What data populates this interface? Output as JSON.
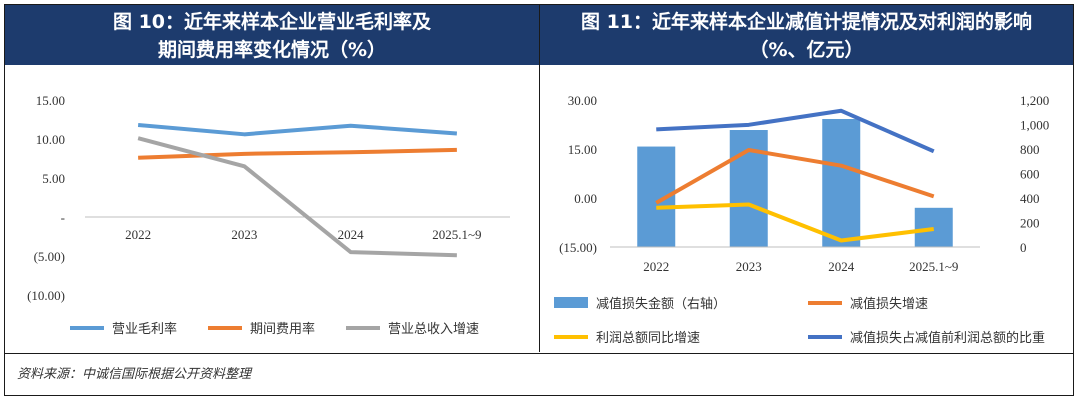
{
  "fig10": {
    "title_line1": "图 10：近年来样本企业营业毛利率及",
    "title_line2": "期间费用率变化情况（%）"
  },
  "fig11": {
    "title_line1": "图 11：近年来样本企业减值计提情况及对利润的影响",
    "title_line2": "（%、亿元）"
  },
  "source": "资料来源：中诚信国际根据公开资料整理",
  "colors": {
    "title_bg": "#1d3b6d",
    "blue": "#5b9bd5",
    "orange": "#ed7d31",
    "gray": "#a5a5a5",
    "yellow": "#ffc000",
    "navy": "#4472c4"
  },
  "chart_data": [
    {
      "type": "line",
      "title": "图 10：近年来样本企业营业毛利率及期间费用率变化情况（%）",
      "categories": [
        "2022",
        "2023",
        "2024",
        "2025.1~9"
      ],
      "y_ticks": [
        "15.00",
        "10.00",
        "5.00",
        "-",
        "(5.00)",
        "(10.00)"
      ],
      "ylim": [
        -10,
        15
      ],
      "series": [
        {
          "name": "营业毛利率",
          "color": "#5b9bd5",
          "values": [
            11.8,
            10.6,
            11.7,
            10.7
          ]
        },
        {
          "name": "期间费用率",
          "color": "#ed7d31",
          "values": [
            7.6,
            8.1,
            8.3,
            8.6
          ]
        },
        {
          "name": "营业总收入增速",
          "color": "#a5a5a5",
          "values": [
            10.1,
            6.5,
            -4.5,
            -4.9
          ]
        }
      ],
      "legend": "bottom"
    },
    {
      "type": "bar",
      "title": "图 11：近年来样本企业减值计提情况及对利润的影响（%、亿元）",
      "categories": [
        "2022",
        "2023",
        "2024",
        "2025.1~9"
      ],
      "y_left_ticks": [
        "30.00",
        "15.00",
        "0.00",
        "(15.00)"
      ],
      "ylim_left": [
        -15,
        30
      ],
      "y_right_ticks": [
        "1,200",
        "1,000",
        "800",
        "600",
        "400",
        "200",
        "0"
      ],
      "ylim_right": [
        0,
        1200
      ],
      "series": [
        {
          "name": "减值损失金额（右轴）",
          "type": "bar",
          "axis": "right",
          "color": "#5b9bd5",
          "values": [
            820,
            955,
            1045,
            320
          ]
        },
        {
          "name": "减值损失增速",
          "type": "line",
          "axis": "left",
          "color": "#ed7d31",
          "values": [
            -1.5,
            14.7,
            9.9,
            0.5
          ]
        },
        {
          "name": "利润总额同比增速",
          "type": "line",
          "axis": "left",
          "color": "#ffc000",
          "values": [
            -3.0,
            -2.0,
            -13.0,
            -9.5
          ]
        },
        {
          "name": "减值损失占减值前利润总额的比重",
          "type": "line",
          "axis": "left",
          "color": "#4472c4",
          "values": [
            21.0,
            22.4,
            26.7,
            14.3
          ]
        }
      ],
      "legend": "bottom"
    }
  ]
}
